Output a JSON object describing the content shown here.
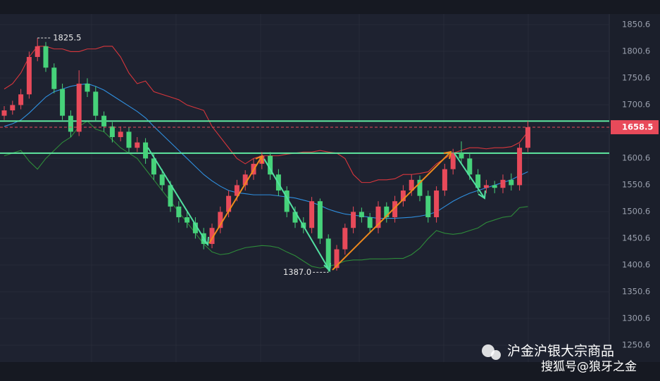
{
  "chart_data": {
    "type": "candlestick",
    "up_color": "#e84a5a",
    "down_color": "#46d27a",
    "open": [
      1680,
      1690,
      1700,
      1720,
      1790,
      1810,
      1770,
      1730,
      1680,
      1650,
      1740,
      1725,
      1680,
      1660,
      1640,
      1650,
      1620,
      1630,
      1600,
      1570,
      1550,
      1510,
      1490,
      1480,
      1460,
      1440,
      1470,
      1500,
      1530,
      1550,
      1570,
      1590,
      1605,
      1570,
      1540,
      1500,
      1480,
      1470,
      1520,
      1450,
      1395,
      1430,
      1470,
      1500,
      1490,
      1470,
      1510,
      1490,
      1520,
      1540,
      1560,
      1530,
      1490,
      1540,
      1580,
      1610,
      1600,
      1570,
      1545,
      1550,
      1545,
      1560,
      1550,
      1620
    ],
    "high": [
      1698,
      1708,
      1730,
      1800,
      1825.5,
      1818,
      1778,
      1740,
      1690,
      1765,
      1750,
      1735,
      1688,
      1668,
      1660,
      1658,
      1640,
      1638,
      1610,
      1580,
      1558,
      1520,
      1500,
      1490,
      1470,
      1478,
      1510,
      1540,
      1560,
      1578,
      1600,
      1612,
      1612,
      1580,
      1548,
      1510,
      1490,
      1528,
      1525,
      1458,
      1438,
      1478,
      1510,
      1508,
      1498,
      1520,
      1518,
      1530,
      1550,
      1570,
      1568,
      1540,
      1548,
      1590,
      1618,
      1632,
      1610,
      1580,
      1560,
      1558,
      1570,
      1572,
      1628,
      1670
    ],
    "low": [
      1672,
      1682,
      1692,
      1712,
      1782,
      1762,
      1722,
      1672,
      1640,
      1642,
      1715,
      1670,
      1650,
      1630,
      1632,
      1610,
      1612,
      1590,
      1560,
      1540,
      1500,
      1480,
      1470,
      1450,
      1430,
      1432,
      1460,
      1490,
      1520,
      1540,
      1560,
      1580,
      1560,
      1530,
      1490,
      1470,
      1460,
      1460,
      1440,
      1387,
      1390,
      1420,
      1460,
      1480,
      1460,
      1460,
      1480,
      1480,
      1510,
      1530,
      1520,
      1480,
      1480,
      1530,
      1570,
      1590,
      1560,
      1535,
      1535,
      1535,
      1535,
      1540,
      1540,
      1612
    ],
    "close": [
      1690,
      1700,
      1720,
      1790,
      1810,
      1770,
      1730,
      1680,
      1650,
      1740,
      1725,
      1680,
      1660,
      1640,
      1650,
      1620,
      1630,
      1600,
      1570,
      1550,
      1510,
      1490,
      1480,
      1460,
      1440,
      1470,
      1500,
      1530,
      1550,
      1570,
      1590,
      1605,
      1570,
      1540,
      1500,
      1480,
      1470,
      1520,
      1450,
      1395,
      1430,
      1470,
      1500,
      1490,
      1470,
      1510,
      1490,
      1520,
      1540,
      1560,
      1530,
      1490,
      1540,
      1580,
      1610,
      1600,
      1570,
      1545,
      1550,
      1545,
      1560,
      1550,
      1620,
      1658.5
    ],
    "series": [
      {
        "color": "#d8363c",
        "values": [
          1730,
          1740,
          1760,
          1790,
          1810,
          1810,
          1805,
          1805,
          1800,
          1800,
          1805,
          1805,
          1810,
          1810,
          1790,
          1760,
          1740,
          1745,
          1725,
          1720,
          1715,
          1710,
          1700,
          1695,
          1690,
          1660,
          1640,
          1620,
          1600,
          1590,
          1600,
          1605,
          1605,
          1605,
          1608,
          1610,
          1612,
          1612,
          1615,
          1612,
          1610,
          1600,
          1570,
          1555,
          1555,
          1560,
          1560,
          1562,
          1570,
          1570,
          1572,
          1575,
          1590,
          1600,
          1610,
          1615,
          1620,
          1620,
          1618,
          1620,
          1620,
          1622,
          1630,
          1650
        ]
      },
      {
        "color": "#2f8fdf",
        "values": [
          1660,
          1665,
          1672,
          1685,
          1700,
          1715,
          1725,
          1730,
          1735,
          1738,
          1740,
          1735,
          1728,
          1718,
          1708,
          1698,
          1688,
          1676,
          1660,
          1645,
          1630,
          1615,
          1600,
          1585,
          1570,
          1558,
          1548,
          1540,
          1536,
          1534,
          1532,
          1532,
          1532,
          1530,
          1528,
          1526,
          1522,
          1518,
          1512,
          1505,
          1500,
          1496,
          1494,
          1492,
          1490,
          1488,
          1488,
          1488,
          1489,
          1490,
          1492,
          1495,
          1500,
          1510,
          1520,
          1528,
          1535,
          1540,
          1545,
          1550,
          1555,
          1560,
          1568,
          1575
        ]
      },
      {
        "color": "#2e8b3a",
        "values": [
          1605,
          1610,
          1615,
          1595,
          1580,
          1600,
          1615,
          1630,
          1640,
          1660,
          1670,
          1655,
          1650,
          1635,
          1620,
          1610,
          1600,
          1580,
          1560,
          1540,
          1520,
          1500,
          1480,
          1460,
          1440,
          1425,
          1420,
          1422,
          1428,
          1433,
          1435,
          1437,
          1436,
          1433,
          1425,
          1418,
          1408,
          1398,
          1395,
          1398,
          1402,
          1408,
          1410,
          1410,
          1412,
          1412,
          1412,
          1413,
          1413,
          1420,
          1432,
          1450,
          1465,
          1460,
          1458,
          1460,
          1465,
          1470,
          1480,
          1485,
          1490,
          1492,
          1508,
          1510
        ]
      }
    ],
    "levels": [
      1670,
      1610
    ],
    "level_color": "#5ee8a0",
    "ylim": [
      1219.0,
      1870.3
    ],
    "yticks": [
      1850.6,
      1800.6,
      1750.6,
      1700.6,
      1650.6,
      1600.6,
      1550.6,
      1500.6,
      1450.6,
      1400.6,
      1350.6,
      1300.6,
      1250.6
    ],
    "max_label": "1825.5",
    "min_label": "1387.0",
    "last_price_label": "1658.5",
    "watermark": [
      "沪金沪银大宗商品",
      "搜狐号@狼牙之金"
    ]
  }
}
